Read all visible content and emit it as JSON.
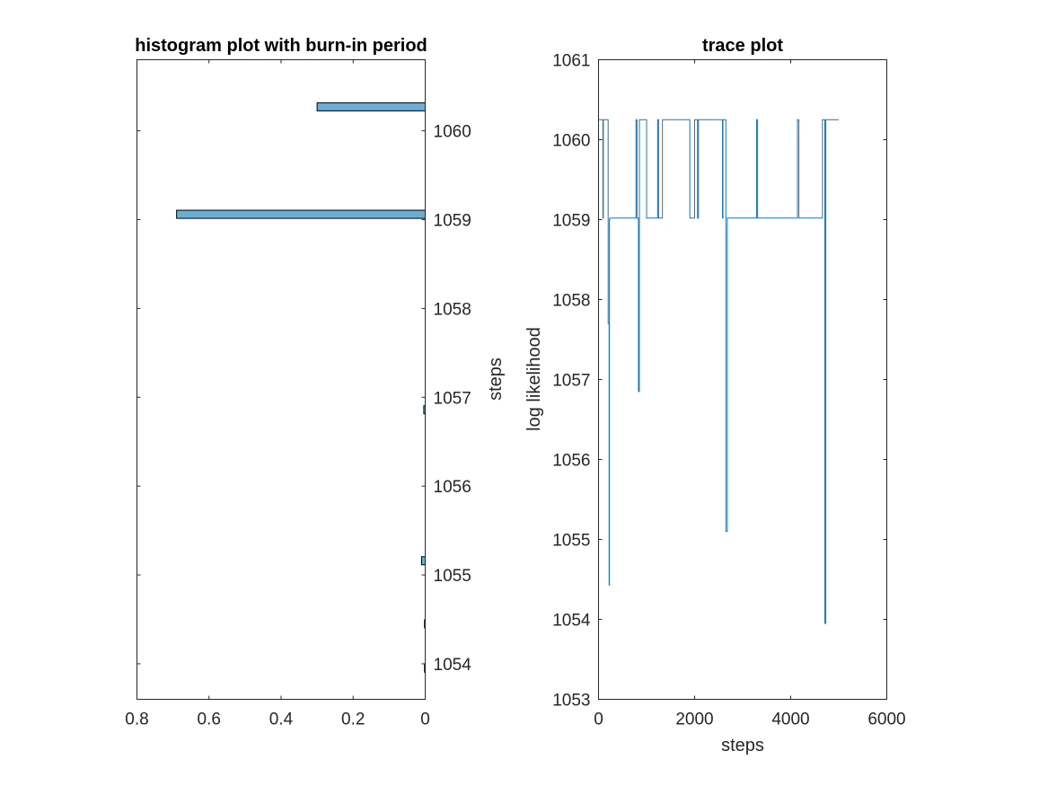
{
  "chart_data": [
    {
      "type": "bar",
      "orientation": "horizontal",
      "x_direction": "reversed",
      "y_axis_location": "right",
      "title": "histogram plot with burn-in period",
      "xlabel": "",
      "ylabel": "steps",
      "xlim": [
        0,
        0.8
      ],
      "ylim": [
        1053.6,
        1060.8
      ],
      "xticks": [
        0.8,
        0.6,
        0.4,
        0.2,
        0
      ],
      "xtick_labels": [
        "0.8",
        "0.6",
        "0.4",
        "0.2",
        "0"
      ],
      "yticks": [
        1054,
        1055,
        1056,
        1057,
        1058,
        1059,
        1060
      ],
      "ytick_labels": [
        "1054",
        "1055",
        "1056",
        "1057",
        "1058",
        "1059",
        "1060"
      ],
      "bars": [
        {
          "y": 1060.27,
          "value": 0.3
        },
        {
          "y": 1059.06,
          "value": 0.69
        },
        {
          "y": 1056.86,
          "value": 0.004
        },
        {
          "y": 1055.16,
          "value": 0.01
        },
        {
          "y": 1054.45,
          "value": 0.002
        },
        {
          "y": 1053.95,
          "value": 0.002
        }
      ],
      "bar_color": "#6aaed6",
      "grid": false
    },
    {
      "type": "line",
      "title": "trace plot",
      "xlabel": "steps",
      "ylabel": "log likelihood",
      "xlim": [
        0,
        6000
      ],
      "ylim": [
        1053,
        1061
      ],
      "xticks": [
        0,
        2000,
        4000,
        6000
      ],
      "xtick_labels": [
        "0",
        "2000",
        "4000",
        "6000"
      ],
      "yticks": [
        1053,
        1054,
        1055,
        1056,
        1057,
        1058,
        1059,
        1060,
        1061
      ],
      "ytick_labels": [
        "1053",
        "1054",
        "1055",
        "1056",
        "1057",
        "1058",
        "1059",
        "1060",
        "1061"
      ],
      "line_color": "#1f77b4",
      "grid": false,
      "series": [
        {
          "x": [
            0,
            90,
            90,
            100,
            100,
            200,
            200,
            220,
            220,
            225,
            225,
            232,
            232,
            780,
            780,
            800,
            800,
            830,
            830,
            850,
            850,
            1000,
            1000,
            1230,
            1230,
            1250,
            1250,
            1330,
            1330,
            1900,
            1900,
            2000,
            2000,
            2060,
            2060,
            2080,
            2080,
            2580,
            2580,
            2590,
            2590,
            2650,
            2650,
            2680,
            2680,
            2700,
            2700,
            3290,
            3290,
            3310,
            3310,
            4140,
            4140,
            4170,
            4170,
            4660,
            4660,
            4710,
            4710,
            4730,
            4730,
            4760,
            4760,
            5000
          ],
          "y": [
            1060.25,
            1060.25,
            1059.02,
            1059.02,
            1060.25,
            1060.25,
            1057.7,
            1057.7,
            1054.43,
            1054.43,
            1059.0,
            1059.0,
            1059.02,
            1059.02,
            1060.25,
            1060.25,
            1059.02,
            1059.02,
            1056.85,
            1056.85,
            1060.25,
            1060.25,
            1059.02,
            1059.02,
            1060.25,
            1060.25,
            1059.02,
            1059.02,
            1060.25,
            1060.25,
            1059.02,
            1059.02,
            1060.25,
            1060.25,
            1059.02,
            1059.02,
            1060.25,
            1060.25,
            1059.02,
            1059.02,
            1060.25,
            1060.25,
            1055.1,
            1055.1,
            1059.02,
            1059.02,
            1059.02,
            1059.02,
            1060.25,
            1060.25,
            1059.02,
            1059.02,
            1060.25,
            1060.25,
            1059.02,
            1059.02,
            1060.25,
            1060.25,
            1053.95,
            1053.95,
            1060.25,
            1060.25,
            1060.25,
            1060.25
          ]
        }
      ]
    }
  ]
}
